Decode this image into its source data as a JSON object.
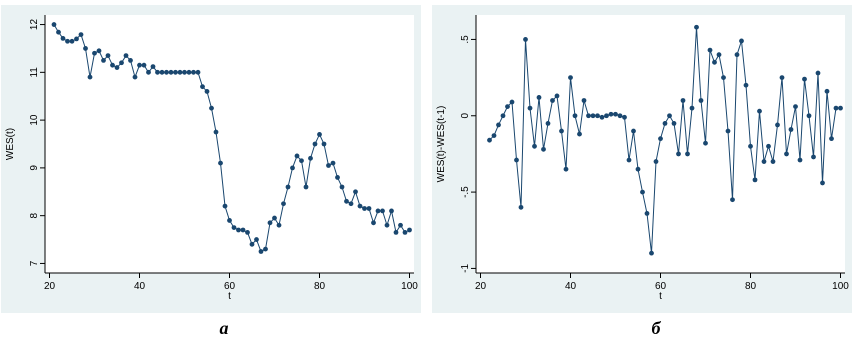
{
  "chart_data": [
    {
      "type": "line",
      "panel": "a",
      "caption": "а",
      "xlabel": "t",
      "ylabel": "WES(t)",
      "xlim": [
        19,
        101
      ],
      "ylim": [
        6.8,
        12.2
      ],
      "xticks": [
        20,
        40,
        60,
        80,
        100
      ],
      "yticks": [
        7,
        8,
        9,
        10,
        11,
        12
      ],
      "grid": false,
      "x": [
        21,
        22,
        23,
        24,
        25,
        26,
        27,
        28,
        29,
        30,
        31,
        32,
        33,
        34,
        35,
        36,
        37,
        38,
        39,
        40,
        41,
        42,
        43,
        44,
        45,
        46,
        47,
        48,
        49,
        50,
        51,
        52,
        53,
        54,
        55,
        56,
        57,
        58,
        59,
        60,
        61,
        62,
        63,
        64,
        65,
        66,
        67,
        68,
        69,
        70,
        71,
        72,
        73,
        74,
        75,
        76,
        77,
        78,
        79,
        80,
        81,
        82,
        83,
        84,
        85,
        86,
        87,
        88,
        89,
        90,
        91,
        92,
        93,
        94,
        95,
        96,
        97,
        98,
        99,
        100
      ],
      "series": [
        {
          "values": [
            12.0,
            11.84,
            11.71,
            11.65,
            11.65,
            11.7,
            11.79,
            11.5,
            10.9,
            11.4,
            11.45,
            11.25,
            11.35,
            11.15,
            11.1,
            11.2,
            11.35,
            11.25,
            10.9,
            11.15,
            11.15,
            11.0,
            11.12,
            11.0,
            11.0,
            11.0,
            11.0,
            11.0,
            11.0,
            11.0,
            11.0,
            11.0,
            11.0,
            10.7,
            10.6,
            10.25,
            9.75,
            9.1,
            8.2,
            7.9,
            7.75,
            7.7,
            7.7,
            7.65,
            7.4,
            7.5,
            7.25,
            7.3,
            7.85,
            7.95,
            7.8,
            8.25,
            8.6,
            9.0,
            9.25,
            9.15,
            8.6,
            9.2,
            9.5,
            9.7,
            9.5,
            9.05,
            9.1,
            8.8,
            8.6,
            8.3,
            8.25,
            8.5,
            8.2,
            8.15,
            8.15,
            7.85,
            8.1,
            8.1,
            7.8,
            8.1,
            7.65,
            7.8,
            7.65,
            7.7
          ]
        }
      ]
    },
    {
      "type": "line",
      "panel": "b",
      "caption": "б",
      "xlabel": "t",
      "ylabel": "WES(t)-WES(t-1)",
      "xlim": [
        19,
        101
      ],
      "ylim": [
        -1.03,
        0.66
      ],
      "xticks": [
        20,
        40,
        60,
        80,
        100
      ],
      "yticks": [
        -1,
        -0.5,
        0,
        0.5
      ],
      "ytick_labels": [
        "-1",
        "-.5",
        "0",
        ".5"
      ],
      "grid": false,
      "x": [
        22,
        23,
        24,
        25,
        26,
        27,
        28,
        29,
        30,
        31,
        32,
        33,
        34,
        35,
        36,
        37,
        38,
        39,
        40,
        41,
        42,
        43,
        44,
        45,
        46,
        47,
        48,
        49,
        50,
        51,
        52,
        53,
        54,
        55,
        56,
        57,
        58,
        59,
        60,
        61,
        62,
        63,
        64,
        65,
        66,
        67,
        68,
        69,
        70,
        71,
        72,
        73,
        74,
        75,
        76,
        77,
        78,
        79,
        80,
        81,
        82,
        83,
        84,
        85,
        86,
        87,
        88,
        89,
        90,
        91,
        92,
        93,
        94,
        95,
        96,
        97,
        98,
        99,
        100
      ],
      "series": [
        {
          "values": [
            -0.16,
            -0.13,
            -0.06,
            0.0,
            0.06,
            0.09,
            -0.29,
            -0.6,
            0.5,
            0.05,
            -0.2,
            0.12,
            -0.22,
            -0.05,
            0.1,
            0.13,
            -0.1,
            -0.35,
            0.25,
            0.0,
            -0.12,
            0.1,
            0.0,
            0.0,
            0.0,
            -0.01,
            0.0,
            0.01,
            0.01,
            0.0,
            -0.01,
            -0.29,
            -0.1,
            -0.35,
            -0.5,
            -0.64,
            -0.9,
            -0.3,
            -0.15,
            -0.05,
            0.0,
            -0.05,
            -0.25,
            0.1,
            -0.25,
            0.05,
            0.58,
            0.1,
            -0.18,
            0.43,
            0.35,
            0.4,
            0.25,
            -0.1,
            -0.55,
            0.4,
            0.49,
            0.2,
            -0.2,
            -0.42,
            0.03,
            -0.3,
            -0.2,
            -0.3,
            -0.06,
            0.25,
            -0.25,
            -0.09,
            0.06,
            -0.29,
            0.24,
            0.0,
            -0.27,
            0.28,
            -0.44,
            0.16,
            -0.15,
            0.05,
            0.05
          ]
        }
      ]
    }
  ],
  "captions": {
    "a": "а",
    "b": "б"
  },
  "colors": {
    "panel_bg": "#eaf2f3",
    "line": "#1a476f",
    "marker": "#1a476f"
  }
}
